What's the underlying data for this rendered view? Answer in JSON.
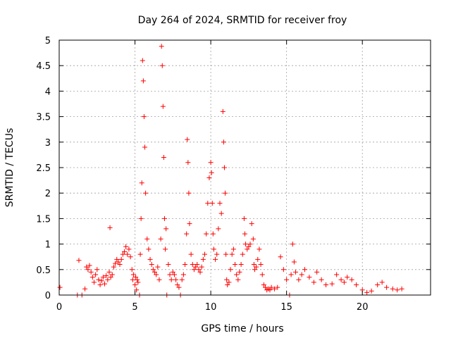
{
  "chart_data": {
    "type": "scatter",
    "title": "Day 264 of 2024, SRMTID for receiver froy",
    "xlabel": "GPS time / hours",
    "ylabel": "SRMTID / TECUs",
    "xlim": [
      0,
      24.5
    ],
    "ylim": [
      0,
      5
    ],
    "xticks": [
      0,
      5,
      10,
      15,
      20
    ],
    "xtick_labels": [
      "0",
      "5",
      "10",
      "15",
      "20"
    ],
    "yticks": [
      0,
      0.5,
      1,
      1.5,
      2,
      2.5,
      3,
      3.5,
      4,
      4.5,
      5
    ],
    "ytick_labels": [
      "0",
      "0.5",
      "1",
      "1.5",
      "2",
      "2.5",
      "3",
      "3.5",
      "4",
      "4.5",
      "5"
    ],
    "grid": true,
    "marker": "+",
    "color": "#ff0000",
    "series": [
      {
        "name": "SRMTID",
        "x": [
          0.05,
          1.2,
          1.3,
          1.5,
          1.7,
          1.8,
          1.9,
          2.0,
          2.1,
          2.2,
          2.3,
          2.4,
          2.5,
          2.6,
          2.7,
          2.8,
          2.9,
          3.0,
          3.1,
          3.2,
          3.3,
          3.35,
          3.4,
          3.5,
          3.6,
          3.7,
          3.8,
          3.9,
          4.0,
          4.1,
          4.2,
          4.3,
          4.4,
          4.5,
          4.6,
          4.7,
          4.8,
          4.85,
          4.9,
          5.0,
          5.05,
          5.1,
          5.15,
          5.2,
          5.3,
          5.35,
          5.4,
          5.45,
          5.5,
          5.55,
          5.6,
          5.65,
          5.7,
          5.8,
          5.9,
          6.0,
          6.1,
          6.2,
          6.3,
          6.4,
          6.5,
          6.6,
          6.7,
          6.75,
          6.8,
          6.85,
          6.9,
          6.95,
          7.0,
          7.05,
          7.1,
          7.2,
          7.3,
          7.4,
          7.5,
          7.6,
          7.7,
          7.8,
          7.9,
          8.0,
          8.1,
          8.2,
          8.3,
          8.4,
          8.45,
          8.5,
          8.55,
          8.6,
          8.7,
          8.8,
          8.9,
          9.0,
          9.1,
          9.2,
          9.3,
          9.4,
          9.5,
          9.6,
          9.7,
          9.8,
          9.9,
          10.0,
          10.05,
          10.1,
          10.15,
          10.2,
          10.3,
          10.4,
          10.5,
          10.6,
          10.7,
          10.8,
          10.85,
          10.9,
          10.95,
          11.0,
          11.05,
          11.1,
          11.2,
          11.3,
          11.4,
          11.5,
          11.6,
          11.7,
          11.8,
          11.9,
          12.0,
          12.1,
          12.2,
          12.25,
          12.3,
          12.4,
          12.5,
          12.6,
          12.7,
          12.8,
          12.85,
          12.9,
          13.0,
          13.1,
          13.2,
          13.3,
          13.4,
          13.5,
          13.6,
          13.7,
          13.8,
          13.9,
          14.0,
          14.2,
          14.4,
          14.6,
          14.8,
          15.0,
          15.2,
          15.3,
          15.4,
          15.5,
          15.6,
          15.8,
          16.0,
          16.2,
          16.5,
          16.8,
          17.0,
          17.3,
          17.6,
          18.0,
          18.3,
          18.6,
          18.8,
          19.0,
          19.3,
          19.6,
          20.0,
          20.3,
          20.6,
          21.0,
          21.3,
          21.6,
          22.0,
          22.3,
          22.6
        ],
        "y": [
          0.15,
          0.0,
          0.68,
          0.0,
          0.12,
          0.55,
          0.5,
          0.58,
          0.45,
          0.35,
          0.25,
          0.4,
          0.5,
          0.3,
          0.2,
          0.28,
          0.35,
          0.22,
          0.38,
          0.3,
          0.45,
          1.32,
          0.35,
          0.4,
          0.55,
          0.62,
          0.7,
          0.65,
          0.6,
          0.7,
          0.8,
          0.85,
          0.95,
          0.8,
          0.9,
          0.75,
          0.5,
          0.3,
          0.4,
          0.2,
          0.35,
          0.1,
          0.3,
          0.25,
          0.0,
          0.8,
          1.5,
          2.2,
          4.6,
          4.2,
          3.5,
          2.9,
          2.0,
          1.1,
          0.9,
          0.7,
          0.6,
          0.5,
          0.45,
          0.4,
          0.55,
          0.3,
          1.1,
          4.88,
          4.5,
          3.7,
          2.7,
          1.5,
          0.9,
          1.3,
          0.0,
          0.6,
          0.4,
          0.3,
          0.45,
          0.4,
          0.3,
          0.2,
          0.15,
          0.0,
          0.3,
          0.4,
          0.6,
          1.2,
          3.05,
          2.6,
          2.0,
          1.4,
          0.8,
          0.6,
          0.5,
          0.55,
          0.6,
          0.5,
          0.45,
          0.55,
          0.7,
          0.8,
          1.2,
          1.8,
          2.3,
          2.6,
          2.4,
          1.8,
          1.2,
          0.9,
          0.7,
          0.8,
          1.3,
          1.8,
          1.6,
          3.6,
          3.0,
          2.5,
          2.0,
          0.8,
          0.3,
          0.2,
          0.25,
          0.5,
          0.8,
          0.9,
          0.6,
          0.4,
          0.3,
          0.45,
          0.6,
          0.8,
          1.5,
          1.2,
          1.0,
          0.9,
          0.95,
          1.0,
          1.4,
          1.1,
          0.6,
          0.5,
          0.55,
          0.7,
          0.9,
          0.6,
          0.4,
          0.2,
          0.15,
          0.1,
          0.12,
          0.1,
          0.15,
          0.12,
          0.15,
          0.75,
          0.5,
          0.3,
          0.0,
          0.4,
          1.0,
          0.65,
          0.45,
          0.3,
          0.4,
          0.5,
          0.35,
          0.25,
          0.45,
          0.3,
          0.2,
          0.22,
          0.4,
          0.3,
          0.25,
          0.35,
          0.3,
          0.2,
          0.1,
          0.05,
          0.08,
          0.2,
          0.25,
          0.15,
          0.12,
          0.1,
          0.12
        ]
      }
    ]
  }
}
